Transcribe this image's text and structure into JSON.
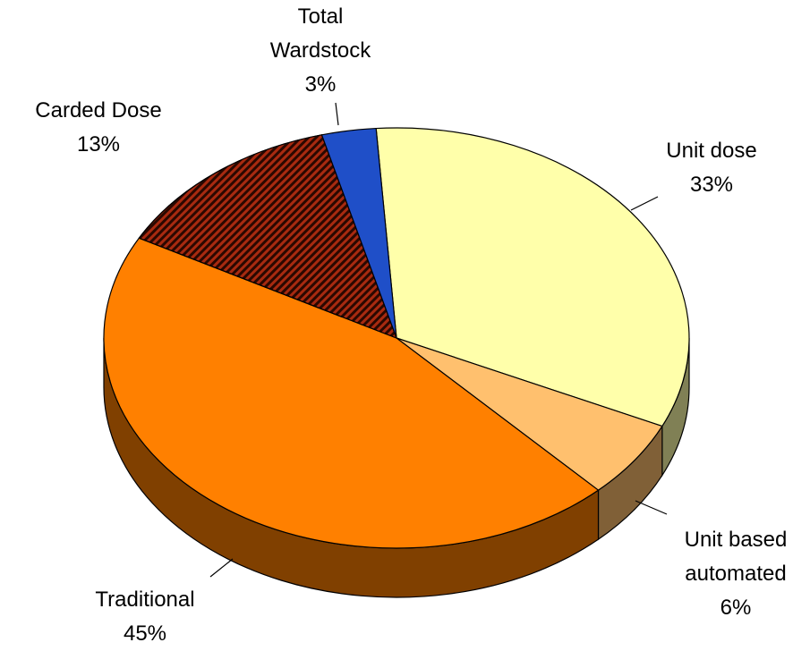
{
  "chart_data": {
    "type": "pie",
    "categories": [
      "Unit dose",
      "Unit based automated",
      "Traditional",
      "Carded Dose",
      "Total Wardstock"
    ],
    "values": [
      33,
      6,
      45,
      13,
      3
    ],
    "value_labels": [
      "33%",
      "6%",
      "45%",
      "13%",
      "3%"
    ],
    "colors": [
      "#ffffaa",
      "#ffc06e",
      "#ff8000",
      "#8b1a00",
      "#1f4fc8"
    ]
  }
}
